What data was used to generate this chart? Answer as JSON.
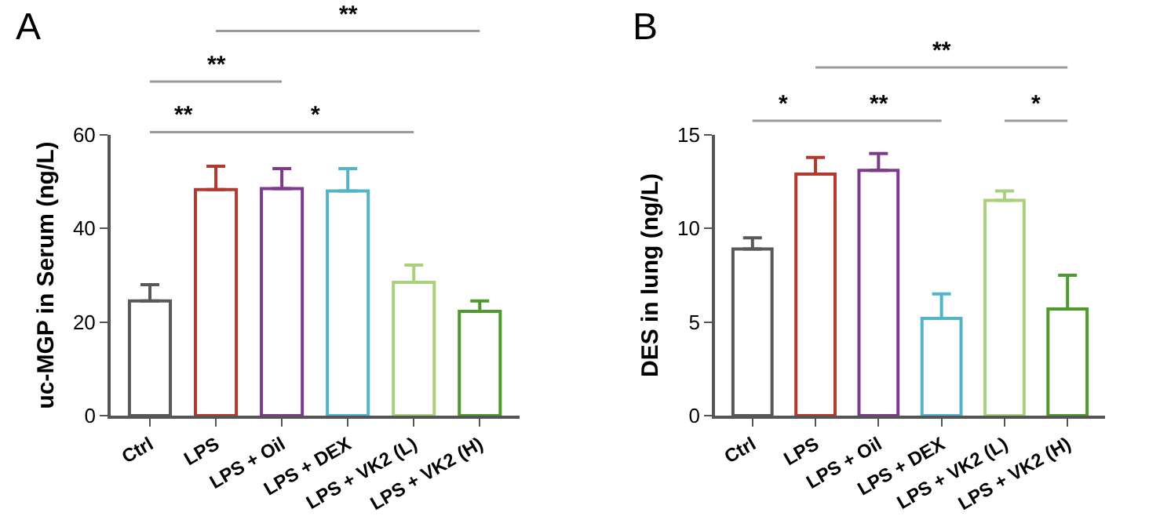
{
  "chart_data": [
    {
      "type": "bar",
      "title": "A",
      "ylabel": "uc-MGP in Serum (ng/L)",
      "categories": [
        "Ctrl",
        "LPS",
        "LPS + Oil",
        "LPS + DEX",
        "LPS + VK2 (L)",
        "LPS + VK2 (H)"
      ],
      "values": [
        24.5,
        48.3,
        48.5,
        48.0,
        28.5,
        22.3
      ],
      "colors": [
        "#595959",
        "#b2392c",
        "#7e3a8e",
        "#52b4c9",
        "#a9d17c",
        "#4e9a2c"
      ],
      "errors": [
        [
          24.5,
          28.0
        ],
        [
          48.3,
          53.3
        ],
        [
          48.5,
          52.8
        ],
        [
          48.0,
          52.8
        ],
        [
          28.5,
          32.2
        ],
        [
          22.3,
          24.5
        ]
      ],
      "ylim": [
        0,
        60
      ],
      "yticks": [
        0,
        20,
        40,
        60
      ],
      "annotations": [
        "**",
        "*",
        "**",
        "**"
      ]
    },
    {
      "type": "bar",
      "title": "B",
      "ylabel": "DES in lung (ng/L)",
      "categories": [
        "Ctrl",
        "LPS",
        "LPS + Oil",
        "LPS + DEX",
        "LPS + VK2 (L)",
        "LPS + VK2 (H)"
      ],
      "values": [
        8.9,
        12.9,
        13.1,
        5.2,
        11.5,
        5.7
      ],
      "colors": [
        "#595959",
        "#b2392c",
        "#7e3a8e",
        "#52b4c9",
        "#a9d17c",
        "#4e9a2c"
      ],
      "errors": [
        [
          8.9,
          9.5
        ],
        [
          12.9,
          13.8
        ],
        [
          13.1,
          14.0
        ],
        [
          5.2,
          6.5
        ],
        [
          11.5,
          12.0
        ],
        [
          5.7,
          7.5
        ]
      ],
      "ylim": [
        0,
        15
      ],
      "yticks": [
        0,
        5,
        10,
        15
      ],
      "annotations": [
        "*",
        "**",
        "*",
        "**"
      ]
    }
  ]
}
